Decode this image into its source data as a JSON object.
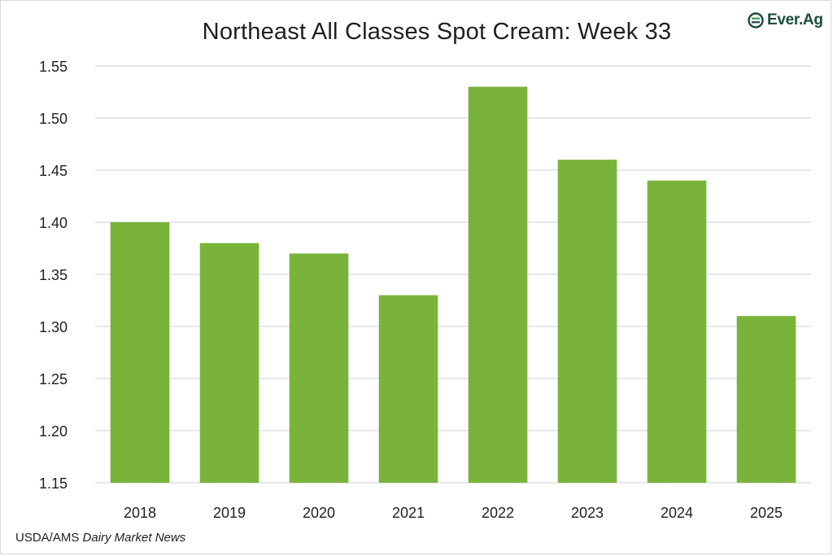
{
  "chart_data": {
    "type": "bar",
    "title": "Northeast All Classes Spot Cream: Week 33",
    "categories": [
      "2018",
      "2019",
      "2020",
      "2021",
      "2022",
      "2023",
      "2024",
      "2025"
    ],
    "values": [
      1.4,
      1.38,
      1.37,
      1.33,
      1.53,
      1.46,
      1.44,
      1.31
    ],
    "ylim": [
      1.15,
      1.55
    ],
    "yticks": [
      "1.15",
      "1.20",
      "1.25",
      "1.30",
      "1.35",
      "1.40",
      "1.45",
      "1.50",
      "1.55"
    ],
    "xlabel": "",
    "ylabel": "",
    "grid": true,
    "bar_color": "#79b33a",
    "grid_color": "#d0d0d0"
  },
  "branding": {
    "logo_text": "Ever.Ag",
    "logo_color": "#1a4d3c",
    "logo_accent": "#3aa35b"
  },
  "source": {
    "prefix": "USDA/AMS ",
    "publication": "Dairy Market News"
  }
}
